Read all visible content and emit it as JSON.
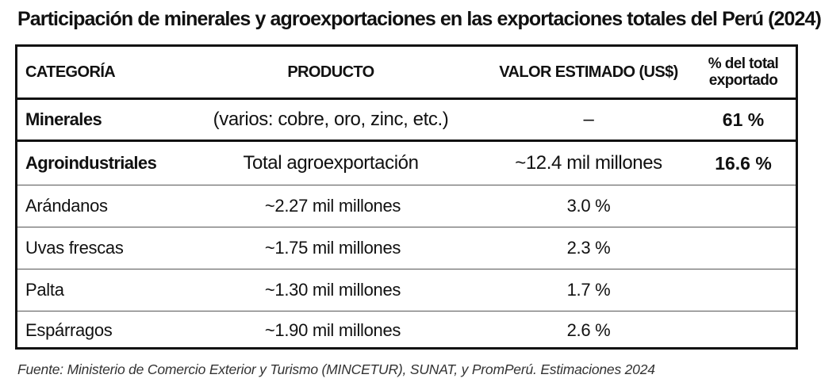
{
  "title": "Participación de minerales y agroexportaciones en las exportaciones totales del Perú (2024)",
  "headers": {
    "categoria": "CATEGORÍA",
    "producto": "PRODUCTO",
    "valor": "VALOR ESTIMADO (US$)",
    "pct_line1": "% del total",
    "pct_line2": "exportado"
  },
  "rows": {
    "minerales": {
      "categoria": "Minerales",
      "producto": "(varios: cobre, oro, zinc, etc.)",
      "valor": "–",
      "pct": "61 %"
    },
    "agro": {
      "categoria": "Agroindustriales",
      "producto": "Total agroexportación",
      "valor": "~12.4 mil millones",
      "pct": "16.6 %"
    },
    "items": [
      {
        "categoria": "Arándanos",
        "producto": "~2.27 mil millones",
        "valor": "3.0 %"
      },
      {
        "categoria": "Uvas frescas",
        "producto": "~1.75 mil millones",
        "valor": "2.3 %"
      },
      {
        "categoria": "Palta",
        "producto": "~1.30 mil millones",
        "valor": "1.7 %"
      },
      {
        "categoria": "Espárragos",
        "producto": "~1.90 mil millones",
        "valor": "2.6 %"
      }
    ]
  },
  "footer": "Fuente: Ministerio de Comercio Exterior y Turismo (MINCETUR), SUNAT, y PromPerú. Estimaciones 2024"
}
